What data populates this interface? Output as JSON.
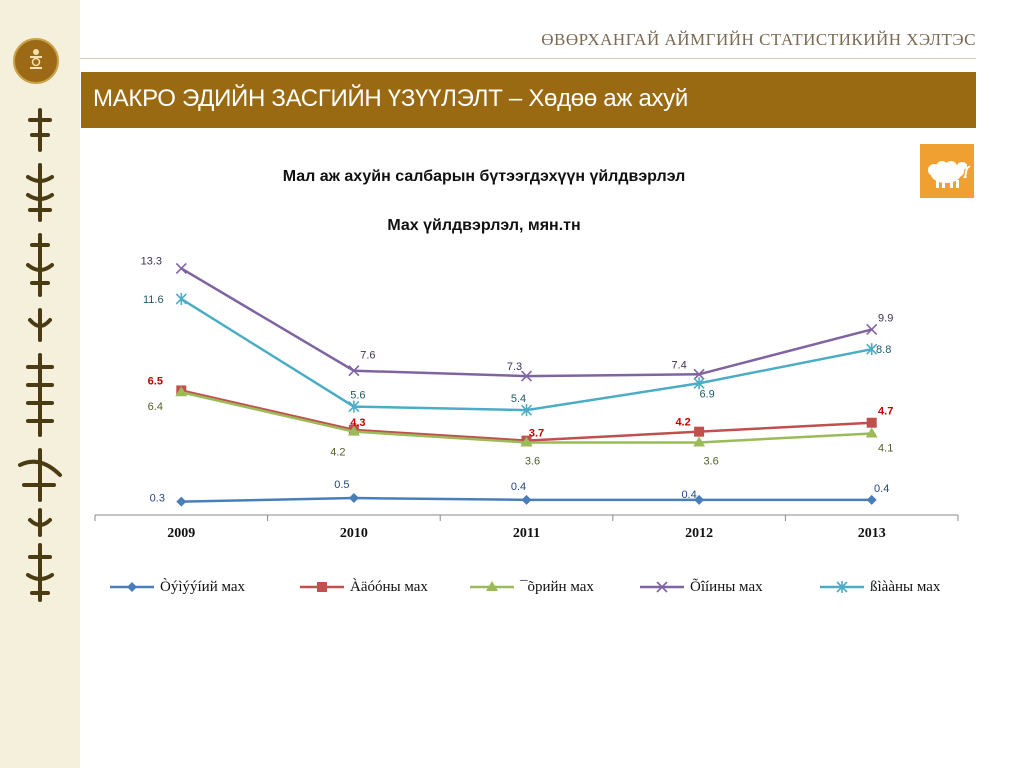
{
  "header": {
    "agency_title": "ӨВӨРХАНГАЙ АЙМГИЙН СТАТИСТИКИЙН ХЭЛТЭС",
    "banner": "МАКРО ЭДИЙН ЗАСГИЙН ҮЗҮҮЛЭЛТ – Хөдөө аж ахуй"
  },
  "logo": {
    "icon": "soyombo-emblem-icon"
  },
  "sheep_icon": {
    "icon": "sheep-icon",
    "color": "#f0a030"
  },
  "colors": {
    "banner": "#9a6a12",
    "strip": "#f4f0dc"
  },
  "chart_data": {
    "type": "line",
    "title": "Мал аж ахуйн салбарын бүтээгдэхүүн үйлдвэрлэл",
    "subtitle": "Мах үйлдвэрлэл, мян.тн",
    "categories": [
      "2009",
      "2010",
      "2011",
      "2012",
      "2013"
    ],
    "ylim": [
      0,
      15
    ],
    "grid": false,
    "legend_position": "bottom",
    "series": [
      {
        "name": "Òýìýýíий мах",
        "values": [
          0.3,
          0.5,
          0.4,
          0.4,
          0.4
        ],
        "labels": [
          "0.3",
          "0.5",
          "0.4",
          "0.4",
          "0.4"
        ],
        "color": "#4a7ebb",
        "label_color": "#1f497d",
        "marker": "diamond"
      },
      {
        "name": "Àäóóны мах",
        "values": [
          6.5,
          4.3,
          3.7,
          4.2,
          4.7
        ],
        "labels": [
          "6.5",
          "4.3",
          "3.7",
          "4.2",
          "4.7"
        ],
        "color": "#c0504d",
        "label_color": "#c00000",
        "marker": "square"
      },
      {
        "name": "¯õрийн мах",
        "values": [
          6.4,
          4.2,
          3.6,
          3.6,
          4.1
        ],
        "labels": [
          "6.4",
          "4.2",
          "3.6",
          "3.6",
          "4.1"
        ],
        "color": "#9bbb59",
        "label_color": "#4f6228",
        "marker": "triangle"
      },
      {
        "name": "Õîíины мах",
        "values": [
          13.3,
          7.6,
          7.3,
          7.4,
          9.9
        ],
        "labels": [
          "13.3",
          "7.6",
          "7.3",
          "7.4",
          "9.9"
        ],
        "color": "#8064a2",
        "label_color": "#403152",
        "marker": "x"
      },
      {
        "name": "ßìààны мах",
        "values": [
          11.6,
          5.6,
          5.4,
          6.9,
          8.8
        ],
        "labels": [
          "11.6",
          "5.6",
          "5.4",
          "6.9",
          "8.8"
        ],
        "color": "#4bacc6",
        "label_color": "#215968",
        "marker": "star"
      }
    ]
  }
}
